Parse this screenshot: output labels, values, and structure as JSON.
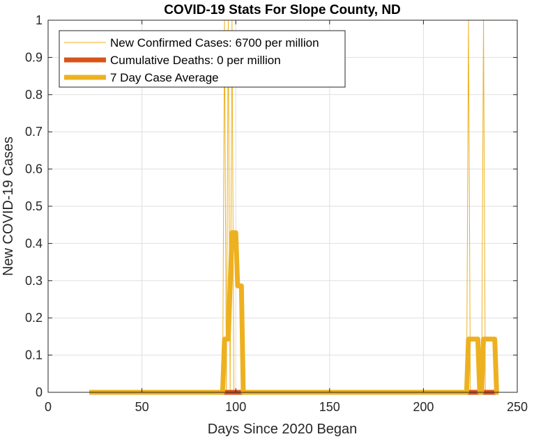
{
  "chart_data": {
    "type": "line",
    "title": "COVID-19 Stats For Slope County, ND",
    "xlabel": "Days Since 2020 Began",
    "ylabel": "New COVID-19 Cases",
    "xlim": [
      0,
      250
    ],
    "ylim": [
      0,
      1
    ],
    "xticks": [
      "0",
      "50",
      "100",
      "150",
      "200",
      "250"
    ],
    "yticks": [
      "0",
      "0.1",
      "0.2",
      "0.3",
      "0.4",
      "0.5",
      "0.6",
      "0.7",
      "0.8",
      "0.9",
      "1"
    ],
    "grid": true,
    "legend_position": "top-left",
    "series": [
      {
        "name": "New Confirmed Cases: 6700 per million",
        "color": "#EDB120",
        "style": "thin",
        "x": [
          22,
          93,
          94,
          95,
          96,
          97,
          98,
          99,
          100,
          223,
          224,
          225,
          231,
          232,
          233,
          240
        ],
        "y": [
          0,
          0,
          1,
          0,
          1,
          0,
          1,
          0,
          0,
          0,
          1,
          0,
          0,
          1,
          0,
          0
        ]
      },
      {
        "name": "Cumulative Deaths: 0 per million",
        "color": "#D95319",
        "style": "thick",
        "x": [
          22,
          240
        ],
        "y": [
          0,
          0
        ]
      },
      {
        "name": "7 Day Case Average",
        "color": "#EDB120",
        "style": "thick",
        "x": [
          22,
          93,
          94,
          96,
          98,
          100,
          101,
          103,
          104,
          223,
          224,
          225,
          229,
          230,
          231,
          232,
          233,
          234,
          238,
          239,
          240
        ],
        "y": [
          0,
          0,
          0.143,
          0.143,
          0.429,
          0.429,
          0.286,
          0.286,
          0,
          0,
          0.143,
          0.143,
          0.143,
          0,
          0,
          0.143,
          0.143,
          0.143,
          0.143,
          0,
          0
        ]
      }
    ]
  }
}
